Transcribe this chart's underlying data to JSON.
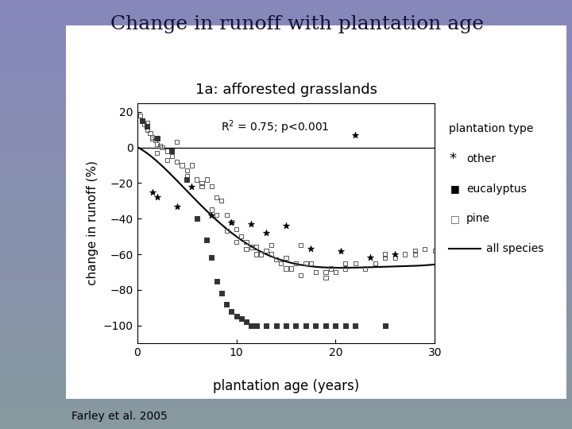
{
  "title": "Change in runoff with plantation age",
  "subtitle": "1a: afforested grasslands",
  "xlabel": "plantation age (years)",
  "ylabel": "change in runoff (%)",
  "citation": "Farley et al. 2005",
  "xlim": [
    0,
    30
  ],
  "ylim": [
    -110,
    25
  ],
  "xticks": [
    0,
    10,
    20,
    30
  ],
  "yticks": [
    20,
    0,
    -20,
    -40,
    -60,
    -80,
    -100
  ],
  "bg_top": "#8888bb",
  "bg_bottom": "#8899aa",
  "panel_color": "#ffffff",
  "pine_x": [
    0.3,
    0.5,
    0.7,
    1.0,
    1.3,
    1.5,
    1.8,
    2.0,
    2.3,
    2.5,
    3.0,
    3.5,
    4.0,
    4.5,
    5.0,
    5.5,
    6.0,
    6.5,
    7.0,
    7.5,
    8.0,
    8.5,
    9.0,
    9.5,
    10.0,
    10.5,
    11.0,
    11.5,
    12.0,
    12.5,
    13.0,
    13.5,
    14.0,
    14.5,
    15.0,
    15.5,
    16.0,
    16.5,
    17.0,
    18.0,
    19.0,
    19.5,
    20.0,
    21.0,
    22.0,
    23.0,
    24.0,
    25.0,
    26.0,
    27.0,
    28.0,
    29.0,
    30.0,
    1.0,
    1.5,
    2.0,
    3.0,
    4.0,
    5.0,
    6.5,
    7.5,
    8.0,
    9.0,
    10.0,
    11.0,
    12.0,
    13.5,
    15.0,
    16.5,
    17.5,
    19.0,
    21.0,
    25.0,
    28.0
  ],
  "pine_y": [
    18,
    15,
    13,
    10,
    8,
    6,
    4,
    2,
    1,
    0,
    -2,
    -5,
    -8,
    -10,
    -13,
    -10,
    -18,
    -20,
    -18,
    -22,
    -28,
    -30,
    -38,
    -42,
    -46,
    -50,
    -53,
    -56,
    -56,
    -60,
    -58,
    -60,
    -63,
    -65,
    -62,
    -68,
    -65,
    -55,
    -65,
    -70,
    -70,
    -68,
    -70,
    -65,
    -65,
    -68,
    -65,
    -60,
    -62,
    -60,
    -58,
    -57,
    -58,
    14,
    5,
    -3,
    -7,
    3,
    -16,
    -22,
    -35,
    -38,
    -47,
    -53,
    -57,
    -60,
    -55,
    -68,
    -72,
    -65,
    -73,
    -68,
    -62,
    -60
  ],
  "eucalyptus_x": [
    0.5,
    1.0,
    2.0,
    3.5,
    5.0,
    6.0,
    7.0,
    7.5,
    8.0,
    8.5,
    9.0,
    9.5,
    10.0,
    10.5,
    11.0,
    11.5,
    12.0,
    13.0,
    14.0,
    15.0,
    16.0,
    17.0,
    18.0,
    19.0,
    20.0,
    21.0,
    22.0,
    25.0
  ],
  "eucalyptus_y": [
    15,
    12,
    5,
    -2,
    -18,
    -40,
    -52,
    -62,
    -75,
    -82,
    -88,
    -92,
    -95,
    -96,
    -98,
    -100,
    -100,
    -100,
    -100,
    -100,
    -100,
    -100,
    -100,
    -100,
    -100,
    -100,
    -100,
    -100
  ],
  "other_x": [
    1.5,
    2.0,
    4.0,
    5.5,
    7.5,
    9.5,
    11.5,
    13.0,
    15.0,
    17.5,
    20.5,
    23.5,
    26.0
  ],
  "other_y": [
    -25,
    -28,
    -33,
    -22,
    -38,
    -42,
    -43,
    -48,
    -44,
    -57,
    -58,
    -62,
    -60
  ],
  "other_lone_x": 22.0,
  "other_lone_y": 7.0
}
